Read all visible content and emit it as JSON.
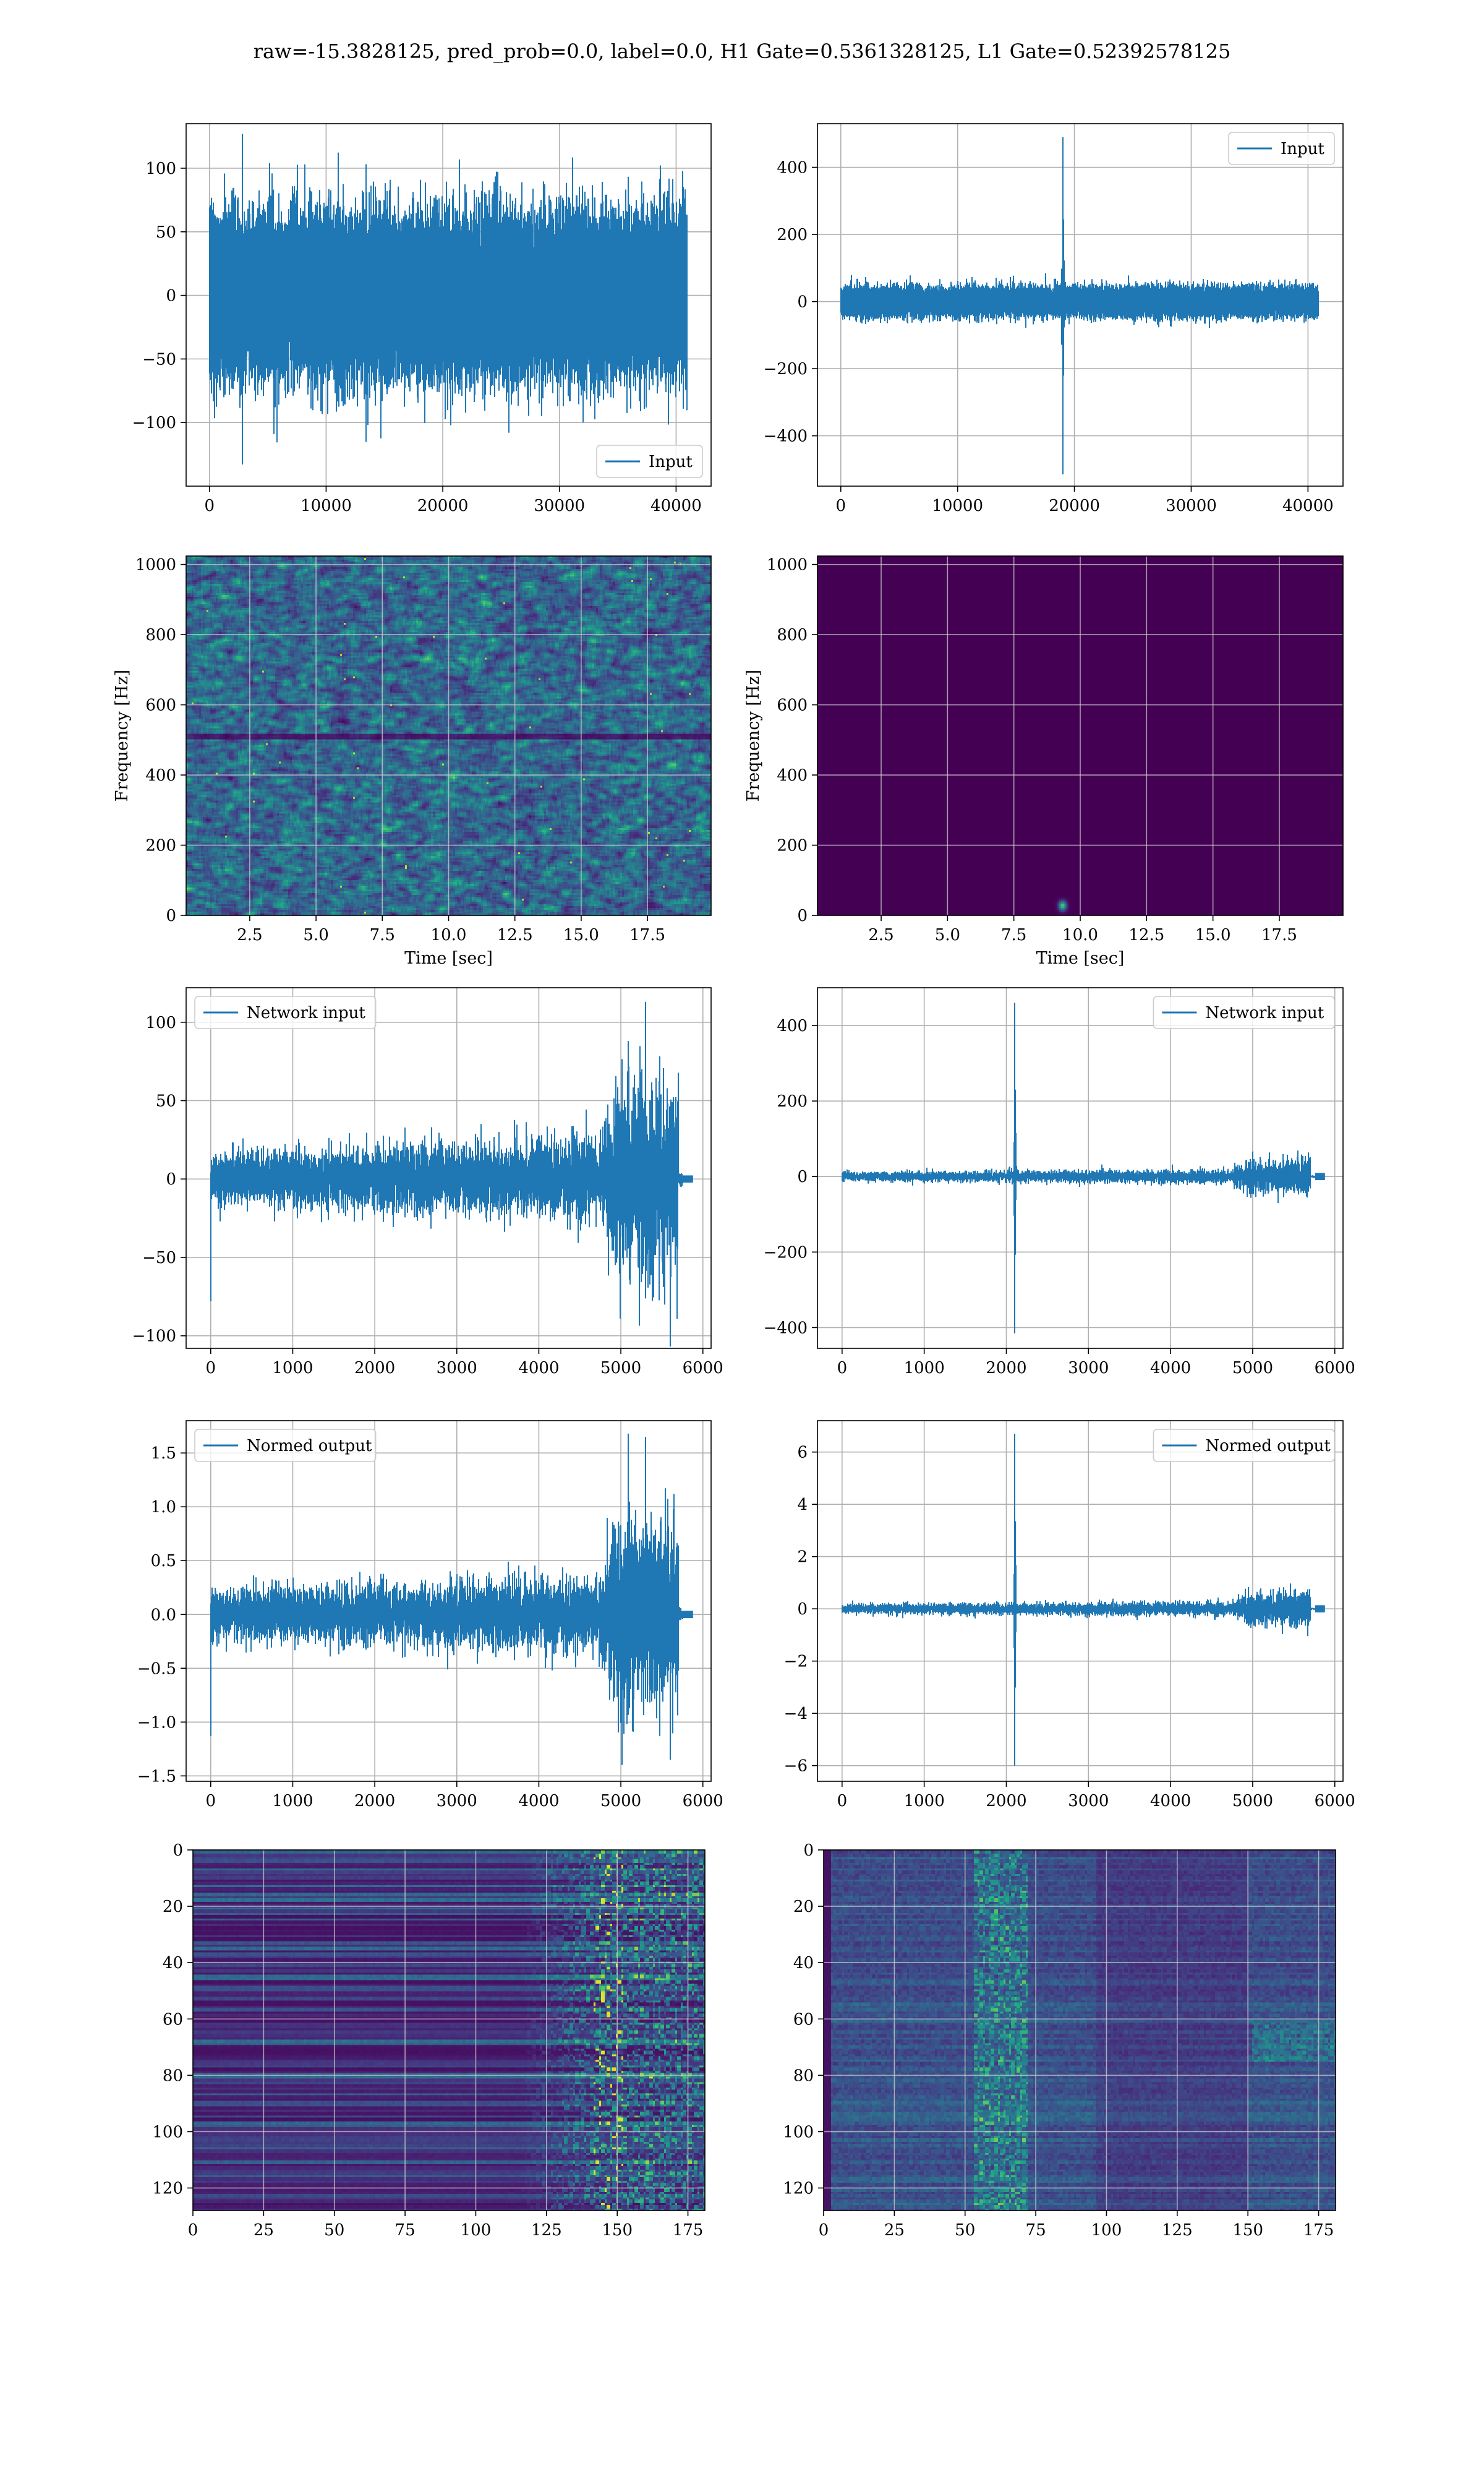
{
  "suptitle": "raw=-15.3828125, pred_prob=0.0, label=0.0, H1 Gate=0.5361328125, L1 Gate=0.52392578125",
  "colors": {
    "line": "#1f77b4",
    "grid": "#b0b0b0",
    "spec_bg": "#440154"
  },
  "chart_data": [
    {
      "id": "h1-input",
      "type": "line",
      "series": [
        {
          "name": "Input"
        }
      ],
      "legend": "lower right",
      "xlim": [
        -2000,
        43000
      ],
      "ylim": [
        -150,
        135
      ],
      "xticks": [
        0,
        10000,
        20000,
        30000,
        40000
      ],
      "yticks": [
        -100,
        -50,
        0,
        50,
        100
      ],
      "signal": {
        "samples": 40960,
        "noise_std": 28,
        "peak": 127,
        "trough": -133
      }
    },
    {
      "id": "l1-input",
      "type": "line",
      "series": [
        {
          "name": "Input"
        }
      ],
      "legend": "upper right",
      "xlim": [
        -2000,
        43000
      ],
      "ylim": [
        -550,
        530
      ],
      "xticks": [
        0,
        10000,
        20000,
        30000,
        40000
      ],
      "yticks": [
        -400,
        -200,
        0,
        200,
        400
      ],
      "signal": {
        "samples": 40960,
        "noise_std": 20,
        "spike_at": 19000,
        "peak": 490,
        "trough": -515
      }
    },
    {
      "id": "h1-spectrogram",
      "type": "heatmap",
      "xlabel": "Time [sec]",
      "ylabel": "Frequency [Hz]",
      "xlim": [
        0.1,
        19.9
      ],
      "ylim": [
        0,
        1024
      ],
      "xticks": [
        2.5,
        5.0,
        7.5,
        10.0,
        12.5,
        15.0,
        17.5
      ],
      "yticks": [
        0,
        200,
        400,
        600,
        800,
        1000
      ],
      "pattern": "uniform noise",
      "dark_band_hz": 510
    },
    {
      "id": "l1-spectrogram",
      "type": "heatmap",
      "xlabel": "Time [sec]",
      "ylabel": "Frequency [Hz]",
      "xlim": [
        0.1,
        19.9
      ],
      "ylim": [
        0,
        1024
      ],
      "xticks": [
        2.5,
        5.0,
        7.5,
        10.0,
        12.5,
        15.0,
        17.5
      ],
      "yticks": [
        0,
        200,
        400,
        600,
        800,
        1000
      ],
      "pattern": "near-zero except blip",
      "blip": {
        "t": 9.3,
        "f": 30
      }
    },
    {
      "id": "h1-network-input",
      "type": "line",
      "series": [
        {
          "name": "Network input"
        }
      ],
      "legend": "upper left",
      "xlim": [
        -300,
        6100
      ],
      "ylim": [
        -108,
        122
      ],
      "xticks": [
        0,
        1000,
        2000,
        3000,
        4000,
        5000,
        6000
      ],
      "yticks": [
        -100,
        -50,
        0,
        50,
        100
      ],
      "signal": {
        "samples": 5760,
        "low_std": 8,
        "rise_at": 4700,
        "high_std": 28,
        "peak": 113,
        "trough": -95,
        "first_dip": -78
      }
    },
    {
      "id": "l1-network-input",
      "type": "line",
      "series": [
        {
          "name": "Network input"
        }
      ],
      "legend": "upper right",
      "xlim": [
        -300,
        6100
      ],
      "ylim": [
        -455,
        500
      ],
      "xticks": [
        0,
        1000,
        2000,
        3000,
        4000,
        5000,
        6000
      ],
      "yticks": [
        -400,
        -200,
        0,
        200,
        400
      ],
      "signal": {
        "samples": 5760,
        "low_std": 6,
        "spike_at": 2100,
        "peak": 460,
        "trough": -415,
        "rise_at": 4700,
        "high_std": 22
      }
    },
    {
      "id": "h1-normed-output",
      "type": "line",
      "series": [
        {
          "name": "Normed output"
        }
      ],
      "legend": "upper left",
      "xlim": [
        -300,
        6100
      ],
      "ylim": [
        -1.55,
        1.8
      ],
      "xticks": [
        0,
        1000,
        2000,
        3000,
        4000,
        5000,
        6000
      ],
      "yticks": [
        -1.5,
        -1.0,
        -0.5,
        0.0,
        0.5,
        1.0,
        1.5
      ],
      "signal": {
        "samples": 5760,
        "low_std": 0.11,
        "rise_at": 4700,
        "high_std": 0.42,
        "peak": 1.65,
        "trough": -1.35,
        "first_dip": -1.13
      }
    },
    {
      "id": "l1-normed-output",
      "type": "line",
      "series": [
        {
          "name": "Normed output"
        }
      ],
      "legend": "upper right",
      "xlim": [
        -300,
        6100
      ],
      "ylim": [
        -6.6,
        7.2
      ],
      "xticks": [
        0,
        1000,
        2000,
        3000,
        4000,
        5000,
        6000
      ],
      "yticks": [
        -6,
        -4,
        -2,
        0,
        2,
        4,
        6
      ],
      "signal": {
        "samples": 5760,
        "low_std": 0.09,
        "spike_at": 2100,
        "peak": 6.7,
        "trough": -6.0,
        "rise_at": 4700,
        "high_std": 0.32
      }
    },
    {
      "id": "h1-activations",
      "type": "heatmap",
      "xlim": [
        0,
        181
      ],
      "ylim": [
        128,
        0
      ],
      "xticks": [
        0,
        25,
        50,
        75,
        100,
        125,
        150,
        175
      ],
      "yticks": [
        0,
        20,
        40,
        60,
        80,
        100,
        120
      ],
      "pattern": "horizontal bands, brighter after 115"
    },
    {
      "id": "l1-activations",
      "type": "heatmap",
      "xlim": [
        0,
        181
      ],
      "ylim": [
        128,
        0
      ],
      "xticks": [
        0,
        25,
        50,
        75,
        100,
        125,
        150,
        175
      ],
      "yticks": [
        0,
        20,
        40,
        60,
        80,
        100,
        120
      ],
      "pattern": "bright column near 60-70, horizontal streaks"
    }
  ]
}
